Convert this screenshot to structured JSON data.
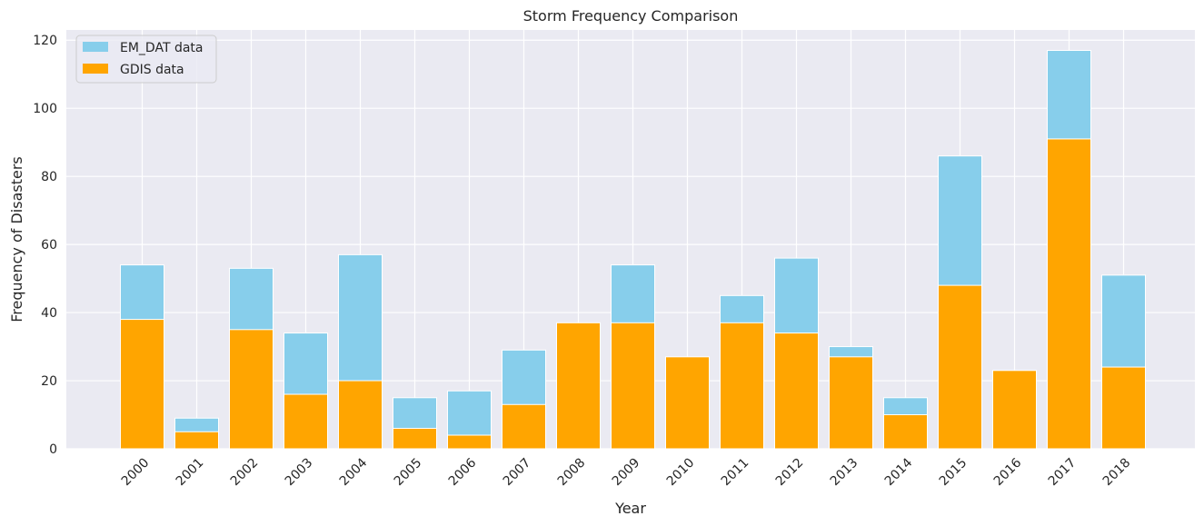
{
  "chart_data": {
    "type": "bar",
    "title": "Storm Frequency Comparison",
    "xlabel": "Year",
    "ylabel": "Frequency of Disasters",
    "categories": [
      "2000",
      "2001",
      "2002",
      "2003",
      "2004",
      "2005",
      "2006",
      "2007",
      "2008",
      "2009",
      "2010",
      "2011",
      "2012",
      "2013",
      "2014",
      "2015",
      "2016",
      "2017",
      "2018"
    ],
    "series": [
      {
        "name": "EM_DAT data",
        "color": "#87CEEB",
        "values": [
          54,
          9,
          53,
          34,
          57,
          15,
          17,
          29,
          0,
          54,
          0,
          45,
          56,
          30,
          15,
          86,
          0,
          117,
          51
        ]
      },
      {
        "name": "GDIS data",
        "color": "#FFA500",
        "values": [
          38,
          5,
          35,
          16,
          20,
          6,
          4,
          13,
          37,
          37,
          27,
          37,
          34,
          27,
          10,
          48,
          23,
          91,
          24
        ]
      }
    ],
    "ylim": [
      0,
      123
    ],
    "yticks": [
      0,
      20,
      40,
      60,
      80,
      100,
      120
    ],
    "grid": true,
    "legend_position": "top-left",
    "background": "#EAEAF2"
  }
}
